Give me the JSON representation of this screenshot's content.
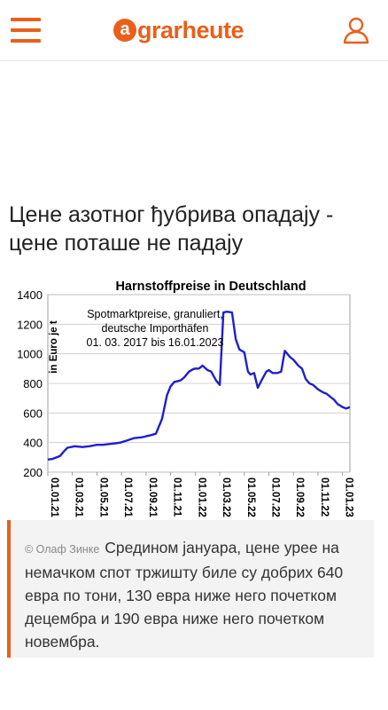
{
  "header": {
    "logo_mark": "a",
    "logo_text": "grarheute",
    "brand_color": "#e8601c"
  },
  "article": {
    "title": "Цене азотног ђубрива опадају - цене поташе не падају",
    "caption_credit": "© Олаф Зинке",
    "caption_text": "Средином јануара, цене урее на немачком спот тржишту биле су добрих 640 евра по тони, 130 евра ниже него почетком децембра и 190 евра ниже него почетком новембра."
  },
  "chart_data": {
    "type": "line",
    "title": "Harnstoffpreise in Deutschland",
    "ylabel": "in Euro je t",
    "annotation": [
      "Spotmarktpreise, granuliert,",
      "deutsche Importhäfen",
      "01. 03. 2017 bis 16.01.2023"
    ],
    "ylim": [
      200,
      1400
    ],
    "yticks": [
      "200",
      "400",
      "600",
      "800",
      "1000",
      "1200",
      "1400"
    ],
    "xlim": [
      0,
      24.6
    ],
    "xticks": [
      {
        "x": 0,
        "label": "01.01.21"
      },
      {
        "x": 2,
        "label": "01.03.21"
      },
      {
        "x": 4,
        "label": "01.05.21"
      },
      {
        "x": 6,
        "label": "01.07.21"
      },
      {
        "x": 8,
        "label": "01.09.21"
      },
      {
        "x": 10,
        "label": "01.11.21"
      },
      {
        "x": 12,
        "label": "01.01.22"
      },
      {
        "x": 14,
        "label": "01.03.22"
      },
      {
        "x": 16,
        "label": "01.05.22"
      },
      {
        "x": 18,
        "label": "01.07.22"
      },
      {
        "x": 20,
        "label": "01.09.22"
      },
      {
        "x": 22,
        "label": "01.11.22"
      },
      {
        "x": 24,
        "label": "01.01.23"
      }
    ],
    "line_color": "#1f1fcc",
    "x": [
      0,
      0.4,
      1.0,
      1.3,
      1.6,
      2.2,
      2.8,
      3.4,
      3.7,
      4.0,
      4.5,
      5.0,
      5.5,
      5.9,
      6.3,
      7.0,
      7.6,
      7.9,
      8.1,
      8.4,
      8.8,
      9.3,
      9.7,
      10.0,
      10.3,
      10.8,
      11.1,
      11.5,
      11.8,
      12.0,
      12.3,
      12.6,
      13.0,
      13.3,
      13.7,
      14.0,
      14.3,
      14.6,
      15.0,
      15.3,
      15.6,
      16.0,
      16.3,
      16.5,
      16.8,
      17.1,
      17.4,
      17.8,
      18.0,
      18.3,
      18.7,
      19.0,
      19.3,
      19.7,
      20.0,
      20.4,
      20.7,
      21.0,
      21.3,
      21.6,
      22.0,
      22.4,
      22.7,
      23.0,
      23.3,
      23.6,
      24.0,
      24.3,
      24.6
    ],
    "y": [
      285,
      290,
      310,
      340,
      365,
      375,
      370,
      375,
      380,
      385,
      385,
      390,
      395,
      400,
      410,
      430,
      435,
      440,
      445,
      450,
      460,
      560,
      720,
      780,
      810,
      820,
      840,
      880,
      895,
      900,
      900,
      920,
      890,
      880,
      820,
      790,
      1280,
      1285,
      1280,
      1100,
      1030,
      1010,
      880,
      860,
      870,
      770,
      820,
      880,
      890,
      870,
      870,
      880,
      1020,
      980,
      960,
      920,
      900,
      830,
      800,
      790,
      760,
      740,
      730,
      710,
      690,
      660,
      640,
      630,
      640
    ]
  }
}
